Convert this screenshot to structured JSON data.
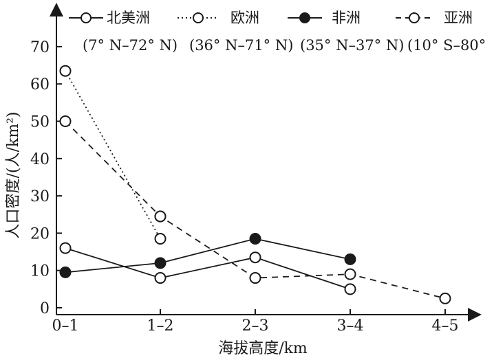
{
  "chart_data": {
    "type": "line",
    "xlabel": "海拔高度/km",
    "ylabel": "人口密度/(人/km²)",
    "categories": [
      "0–1",
      "1–2",
      "2–3",
      "3–4",
      "4–5"
    ],
    "ylim": [
      0,
      75
    ],
    "yticks": [
      "0",
      "10",
      "20",
      "30",
      "40",
      "50",
      "60",
      "70"
    ],
    "grid": false,
    "legend_position": "top",
    "series": [
      {
        "name": "北美洲",
        "range": "(7° N–72° N)",
        "line_style": "solid",
        "marker": "open-circle",
        "values": [
          16,
          8,
          13.5,
          5,
          null
        ]
      },
      {
        "name": "欧洲",
        "range": "(36° N–71° N)",
        "line_style": "dotted",
        "marker": "open-circle",
        "values": [
          63.5,
          18.5,
          null,
          null,
          null
        ],
        "extra_points": [
          {
            "x": "1–2",
            "y": 24.5
          }
        ]
      },
      {
        "name": "非洲",
        "range": "(35° N–37° N)",
        "line_style": "solid",
        "marker": "filled-circle",
        "values": [
          9.5,
          12,
          18.5,
          13,
          null
        ]
      },
      {
        "name": "亚洲",
        "range": "(10° S–80°",
        "line_style": "dashed",
        "marker": "open-circle",
        "values": [
          50,
          24.5,
          8,
          9,
          2.5
        ]
      }
    ]
  }
}
